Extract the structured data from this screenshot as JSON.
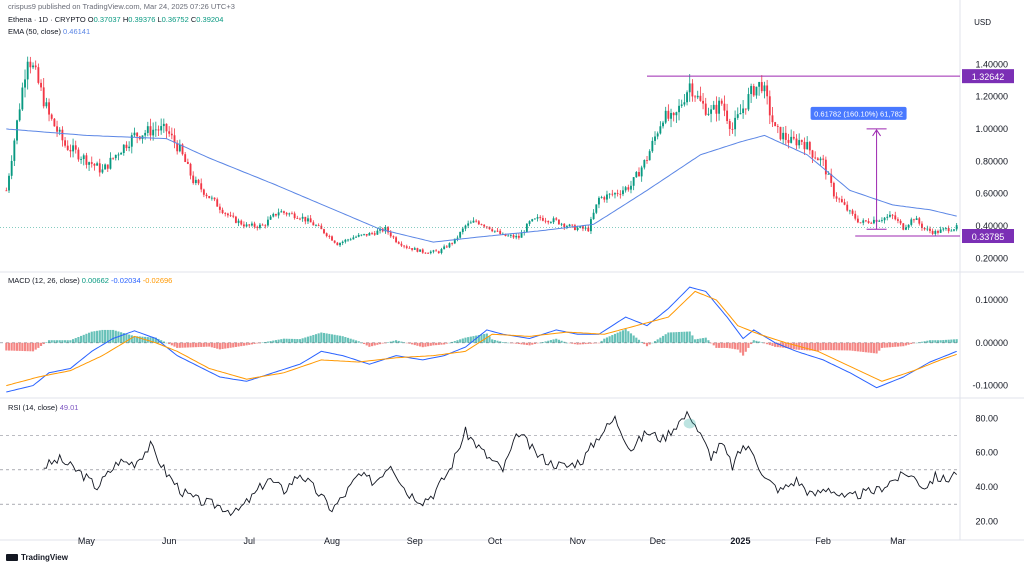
{
  "header": {
    "publisher": "crispus9 published on TradingView.com, Mar 24, 2025 07:26 UTC+3",
    "symbol": "Ethena · 1D · CRYPTO",
    "o_label": "O",
    "o_value": "0.37037",
    "h_label": "H",
    "h_value": "0.39376",
    "l_label": "L",
    "l_value": "0.36752",
    "c_label": "C",
    "c_value": "0.39204",
    "ema_label": "EMA (50, close)",
    "ema_value": "0.46141"
  },
  "currency": "USD",
  "footer": {
    "brand": "TradingView"
  },
  "colors": {
    "up": "#089981",
    "down": "#f23645",
    "ema": "#5b86e5",
    "macd_signal": "#ff9800",
    "rsi": "#131722",
    "annotation": "#9c27b0",
    "label_bg": "#7b2fb5",
    "measure_bg": "#2962ff"
  },
  "chart_data": [
    {
      "type": "candlestick",
      "x_ticks": [
        "May",
        "Jun",
        "Jul",
        "Aug",
        "Sep",
        "Oct",
        "Nov",
        "Dec",
        "2025",
        "Feb",
        "Mar"
      ],
      "x_tick_day_index": [
        30,
        61,
        91,
        122,
        153,
        183,
        214,
        244,
        275,
        306,
        334
      ],
      "y_ticks": [
        "1.40000",
        "1.20000",
        "1.00000",
        "0.80000",
        "0.60000",
        "0.40000",
        "0.20000"
      ],
      "ylim": [
        0.14,
        1.55
      ],
      "price_labels": [
        "1.32642",
        "0.33785"
      ],
      "resistance_level": 1.32642,
      "support_level": 0.33785,
      "measure_label": "0.61782 (160.10%) 61,782",
      "close_anchors": [
        [
          0,
          0.62
        ],
        [
          8,
          1.46
        ],
        [
          11,
          1.33
        ],
        [
          16,
          1.08
        ],
        [
          22,
          0.9
        ],
        [
          30,
          0.81
        ],
        [
          36,
          0.74
        ],
        [
          42,
          0.86
        ],
        [
          48,
          0.96
        ],
        [
          56,
          1.0
        ],
        [
          60,
          0.99
        ],
        [
          65,
          0.87
        ],
        [
          70,
          0.68
        ],
        [
          76,
          0.58
        ],
        [
          84,
          0.45
        ],
        [
          90,
          0.4
        ],
        [
          96,
          0.4
        ],
        [
          102,
          0.49
        ],
        [
          110,
          0.46
        ],
        [
          116,
          0.4
        ],
        [
          120,
          0.35
        ],
        [
          124,
          0.29
        ],
        [
          130,
          0.33
        ],
        [
          136,
          0.35
        ],
        [
          142,
          0.38
        ],
        [
          146,
          0.31
        ],
        [
          150,
          0.27
        ],
        [
          156,
          0.24
        ],
        [
          162,
          0.24
        ],
        [
          168,
          0.31
        ],
        [
          172,
          0.4
        ],
        [
          176,
          0.43
        ],
        [
          180,
          0.4
        ],
        [
          186,
          0.34
        ],
        [
          192,
          0.33
        ],
        [
          196,
          0.42
        ],
        [
          200,
          0.45
        ],
        [
          206,
          0.43
        ],
        [
          212,
          0.39
        ],
        [
          218,
          0.38
        ],
        [
          222,
          0.57
        ],
        [
          228,
          0.6
        ],
        [
          234,
          0.65
        ],
        [
          240,
          0.82
        ],
        [
          246,
          1.08
        ],
        [
          250,
          1.05
        ],
        [
          256,
          1.28
        ],
        [
          260,
          1.16
        ],
        [
          264,
          1.1
        ],
        [
          268,
          1.16
        ],
        [
          272,
          1.0
        ],
        [
          276,
          1.13
        ],
        [
          280,
          1.25
        ],
        [
          283,
          1.28
        ],
        [
          288,
          0.99
        ],
        [
          294,
          0.92
        ],
        [
          298,
          0.93
        ],
        [
          302,
          0.85
        ],
        [
          306,
          0.79
        ],
        [
          310,
          0.6
        ],
        [
          316,
          0.48
        ],
        [
          320,
          0.42
        ],
        [
          326,
          0.44
        ],
        [
          332,
          0.46
        ],
        [
          336,
          0.39
        ],
        [
          340,
          0.45
        ],
        [
          344,
          0.38
        ],
        [
          348,
          0.36
        ],
        [
          352,
          0.38
        ],
        [
          356,
          0.39
        ]
      ],
      "ema_anchors": [
        [
          0,
          1.0
        ],
        [
          30,
          0.96
        ],
        [
          60,
          0.94
        ],
        [
          76,
          0.82
        ],
        [
          100,
          0.66
        ],
        [
          120,
          0.52
        ],
        [
          140,
          0.38
        ],
        [
          160,
          0.3
        ],
        [
          176,
          0.33
        ],
        [
          200,
          0.37
        ],
        [
          220,
          0.41
        ],
        [
          240,
          0.62
        ],
        [
          260,
          0.84
        ],
        [
          275,
          0.92
        ],
        [
          284,
          0.96
        ],
        [
          300,
          0.84
        ],
        [
          316,
          0.62
        ],
        [
          332,
          0.53
        ],
        [
          346,
          0.5
        ],
        [
          356,
          0.461
        ]
      ]
    },
    {
      "type": "line",
      "name": "MACD (12, 26, close)",
      "values_label": [
        "0.00662",
        "-0.02034",
        "-0.02696"
      ],
      "y_ticks": [
        "0.10000",
        "0.00000",
        "-0.10000"
      ],
      "ylim": [
        -0.115,
        0.135
      ],
      "macd_anchors": [
        [
          0,
          -0.115
        ],
        [
          10,
          -0.1
        ],
        [
          16,
          -0.07
        ],
        [
          24,
          -0.06
        ],
        [
          32,
          -0.02
        ],
        [
          40,
          0.01
        ],
        [
          48,
          0.028
        ],
        [
          56,
          0.01
        ],
        [
          64,
          -0.03
        ],
        [
          72,
          -0.055
        ],
        [
          80,
          -0.08
        ],
        [
          90,
          -0.09
        ],
        [
          100,
          -0.07
        ],
        [
          110,
          -0.05
        ],
        [
          118,
          -0.02
        ],
        [
          126,
          -0.03
        ],
        [
          136,
          -0.05
        ],
        [
          146,
          -0.03
        ],
        [
          156,
          -0.04
        ],
        [
          164,
          -0.03
        ],
        [
          172,
          -0.01
        ],
        [
          180,
          0.03
        ],
        [
          186,
          0.02
        ],
        [
          196,
          0.01
        ],
        [
          206,
          0.03
        ],
        [
          214,
          0.02
        ],
        [
          222,
          0.02
        ],
        [
          232,
          0.06
        ],
        [
          240,
          0.04
        ],
        [
          248,
          0.08
        ],
        [
          256,
          0.13
        ],
        [
          262,
          0.12
        ],
        [
          270,
          0.06
        ],
        [
          276,
          0.01
        ],
        [
          280,
          0.03
        ],
        [
          288,
          0.0
        ],
        [
          296,
          -0.02
        ],
        [
          306,
          -0.04
        ],
        [
          316,
          -0.07
        ],
        [
          326,
          -0.105
        ],
        [
          336,
          -0.08
        ],
        [
          346,
          -0.045
        ],
        [
          356,
          -0.02
        ]
      ],
      "signal_anchors": [
        [
          0,
          -0.1
        ],
        [
          12,
          -0.08
        ],
        [
          24,
          -0.065
        ],
        [
          36,
          -0.03
        ],
        [
          48,
          0.015
        ],
        [
          56,
          0.0
        ],
        [
          64,
          -0.02
        ],
        [
          76,
          -0.06
        ],
        [
          90,
          -0.085
        ],
        [
          104,
          -0.07
        ],
        [
          118,
          -0.04
        ],
        [
          132,
          -0.045
        ],
        [
          146,
          -0.035
        ],
        [
          160,
          -0.03
        ],
        [
          172,
          -0.02
        ],
        [
          182,
          0.02
        ],
        [
          196,
          0.015
        ],
        [
          210,
          0.025
        ],
        [
          224,
          0.02
        ],
        [
          236,
          0.04
        ],
        [
          248,
          0.06
        ],
        [
          258,
          0.12
        ],
        [
          266,
          0.1
        ],
        [
          274,
          0.04
        ],
        [
          282,
          0.02
        ],
        [
          292,
          0.0
        ],
        [
          304,
          -0.02
        ],
        [
          316,
          -0.055
        ],
        [
          328,
          -0.09
        ],
        [
          340,
          -0.065
        ],
        [
          350,
          -0.04
        ],
        [
          356,
          -0.027
        ]
      ]
    },
    {
      "type": "line",
      "name": "RSI (14, close)",
      "value_label": "49.01",
      "y_ticks": [
        "80.00",
        "60.00",
        "40.00",
        "20.00"
      ],
      "ylim": [
        15,
        86
      ],
      "bands": [
        70,
        50,
        30
      ],
      "rsi_anchors": [
        [
          0,
          56
        ],
        [
          8,
          59
        ],
        [
          14,
          52
        ],
        [
          20,
          56
        ],
        [
          28,
          48
        ],
        [
          34,
          40
        ],
        [
          42,
          55
        ],
        [
          48,
          54
        ],
        [
          54,
          64
        ],
        [
          60,
          48
        ],
        [
          66,
          37
        ],
        [
          72,
          32
        ],
        [
          80,
          29
        ],
        [
          86,
          25
        ],
        [
          92,
          34
        ],
        [
          98,
          45
        ],
        [
          104,
          38
        ],
        [
          110,
          48
        ],
        [
          116,
          38
        ],
        [
          122,
          27
        ],
        [
          126,
          34
        ],
        [
          132,
          47
        ],
        [
          138,
          43
        ],
        [
          144,
          54
        ],
        [
          150,
          37
        ],
        [
          156,
          32
        ],
        [
          160,
          36
        ],
        [
          166,
          50
        ],
        [
          172,
          72
        ],
        [
          176,
          65
        ],
        [
          180,
          58
        ],
        [
          186,
          50
        ],
        [
          192,
          72
        ],
        [
          198,
          60
        ],
        [
          204,
          54
        ],
        [
          210,
          52
        ],
        [
          216,
          56
        ],
        [
          222,
          70
        ],
        [
          228,
          80
        ],
        [
          234,
          62
        ],
        [
          240,
          72
        ],
        [
          246,
          68
        ],
        [
          252,
          78
        ],
        [
          256,
          83
        ],
        [
          260,
          70
        ],
        [
          264,
          58
        ],
        [
          268,
          65
        ],
        [
          272,
          52
        ],
        [
          276,
          64
        ],
        [
          280,
          60
        ],
        [
          284,
          45
        ],
        [
          290,
          38
        ],
        [
          296,
          44
        ],
        [
          302,
          35
        ],
        [
          308,
          40
        ],
        [
          314,
          33
        ],
        [
          320,
          36
        ],
        [
          326,
          38
        ],
        [
          332,
          44
        ],
        [
          338,
          48
        ],
        [
          344,
          40
        ],
        [
          348,
          46
        ],
        [
          352,
          44
        ],
        [
          356,
          49
        ]
      ]
    }
  ]
}
